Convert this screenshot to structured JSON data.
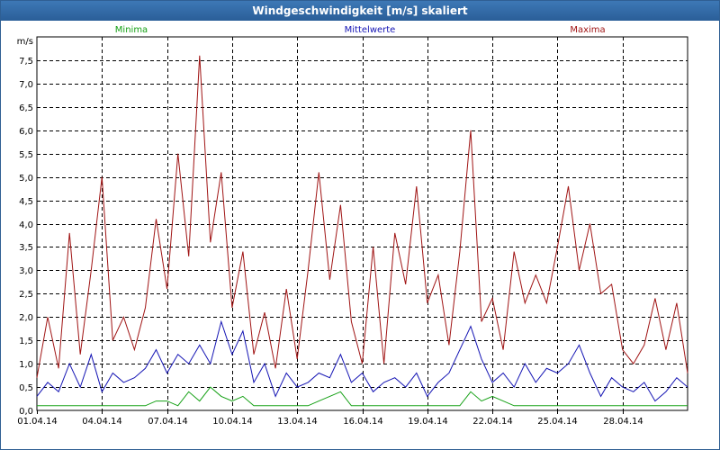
{
  "window": {
    "title": "Windgeschwindigkeit [m/s] skaliert"
  },
  "colors": {
    "min": "#14a014",
    "mean": "#1414b4",
    "max": "#a01414",
    "grid": "#000000"
  },
  "chart_data": {
    "type": "line",
    "title": "Windgeschwindigkeit [m/s] skaliert",
    "ylabel": "m/s",
    "xlabel": "",
    "xlim": [
      "2014-04-01",
      "2014-05-01"
    ],
    "ylim": [
      0,
      8
    ],
    "grid": true,
    "legend_position": "top",
    "y_ticks": [
      "0,0",
      "0,5",
      "1,0",
      "1,5",
      "2,0",
      "2,5",
      "3,0",
      "3,5",
      "4,0",
      "4,5",
      "5,0",
      "5,5",
      "6,0",
      "6,5",
      "7,0",
      "7,5"
    ],
    "y_tick_values": [
      0,
      0.5,
      1,
      1.5,
      2,
      2.5,
      3,
      3.5,
      4,
      4.5,
      5,
      5.5,
      6,
      6.5,
      7,
      7.5
    ],
    "x_ticks": [
      "01.04.14",
      "04.04.14",
      "07.04.14",
      "10.04.14",
      "13.04.14",
      "16.04.14",
      "19.04.14",
      "22.04.14",
      "25.04.14",
      "28.04.14"
    ],
    "x_tick_days": [
      0,
      3,
      6,
      9,
      12,
      15,
      18,
      21,
      24,
      27
    ],
    "series": [
      {
        "name": "Minima",
        "color": "#14a014",
        "x": [
          "2014-04-01",
          "2014-04-01T12:00",
          "2014-04-02",
          "2014-04-02T12:00",
          "2014-04-03",
          "2014-04-03T12:00",
          "2014-04-04",
          "2014-04-04T12:00",
          "2014-04-05",
          "2014-04-05T12:00",
          "2014-04-06",
          "2014-04-06T12:00",
          "2014-04-07",
          "2014-04-07T12:00",
          "2014-04-08",
          "2014-04-08T12:00",
          "2014-04-09",
          "2014-04-09T12:00",
          "2014-04-10",
          "2014-04-10T12:00",
          "2014-04-11",
          "2014-04-11T12:00",
          "2014-04-12",
          "2014-04-12T12:00",
          "2014-04-13",
          "2014-04-13T12:00",
          "2014-04-14",
          "2014-04-14T12:00",
          "2014-04-15",
          "2014-04-15T12:00",
          "2014-04-16",
          "2014-04-16T12:00",
          "2014-04-17",
          "2014-04-17T12:00",
          "2014-04-18",
          "2014-04-18T12:00",
          "2014-04-19",
          "2014-04-19T12:00",
          "2014-04-20",
          "2014-04-20T12:00",
          "2014-04-21",
          "2014-04-21T12:00",
          "2014-04-22",
          "2014-04-22T12:00",
          "2014-04-23",
          "2014-04-23T12:00",
          "2014-04-24",
          "2014-04-24T12:00",
          "2014-04-25",
          "2014-04-25T12:00",
          "2014-04-26",
          "2014-04-26T12:00",
          "2014-04-27",
          "2014-04-27T12:00",
          "2014-04-28",
          "2014-04-28T12:00",
          "2014-04-29",
          "2014-04-29T12:00",
          "2014-04-30",
          "2014-04-30T12:00",
          "2014-05-01"
        ],
        "y": [
          0.1,
          0.1,
          0.1,
          0.1,
          0.1,
          0.1,
          0.1,
          0.1,
          0.1,
          0.1,
          0.1,
          0.2,
          0.2,
          0.1,
          0.4,
          0.2,
          0.5,
          0.3,
          0.2,
          0.3,
          0.1,
          0.1,
          0.1,
          0.1,
          0.1,
          0.1,
          0.2,
          0.3,
          0.4,
          0.1,
          0.1,
          0.1,
          0.1,
          0.1,
          0.1,
          0.1,
          0.1,
          0.1,
          0.1,
          0.1,
          0.4,
          0.2,
          0.3,
          0.2,
          0.1,
          0.1,
          0.1,
          0.1,
          0.1,
          0.1,
          0.1,
          0.1,
          0.1,
          0.1,
          0.1,
          0.1,
          0.1,
          0.1,
          0.1,
          0.1,
          0.1
        ]
      },
      {
        "name": "Mittelwerte",
        "color": "#1414b4",
        "x": [
          "2014-04-01",
          "2014-04-01T12:00",
          "2014-04-02",
          "2014-04-02T12:00",
          "2014-04-03",
          "2014-04-03T12:00",
          "2014-04-04",
          "2014-04-04T12:00",
          "2014-04-05",
          "2014-04-05T12:00",
          "2014-04-06",
          "2014-04-06T12:00",
          "2014-04-07",
          "2014-04-07T12:00",
          "2014-04-08",
          "2014-04-08T12:00",
          "2014-04-09",
          "2014-04-09T12:00",
          "2014-04-10",
          "2014-04-10T12:00",
          "2014-04-11",
          "2014-04-11T12:00",
          "2014-04-12",
          "2014-04-12T12:00",
          "2014-04-13",
          "2014-04-13T12:00",
          "2014-04-14",
          "2014-04-14T12:00",
          "2014-04-15",
          "2014-04-15T12:00",
          "2014-04-16",
          "2014-04-16T12:00",
          "2014-04-17",
          "2014-04-17T12:00",
          "2014-04-18",
          "2014-04-18T12:00",
          "2014-04-19",
          "2014-04-19T12:00",
          "2014-04-20",
          "2014-04-20T12:00",
          "2014-04-21",
          "2014-04-21T12:00",
          "2014-04-22",
          "2014-04-22T12:00",
          "2014-04-23",
          "2014-04-23T12:00",
          "2014-04-24",
          "2014-04-24T12:00",
          "2014-04-25",
          "2014-04-25T12:00",
          "2014-04-26",
          "2014-04-26T12:00",
          "2014-04-27",
          "2014-04-27T12:00",
          "2014-04-28",
          "2014-04-28T12:00",
          "2014-04-29",
          "2014-04-29T12:00",
          "2014-04-30",
          "2014-04-30T12:00",
          "2014-05-01"
        ],
        "y": [
          0.3,
          0.6,
          0.4,
          1.0,
          0.5,
          1.2,
          0.4,
          0.8,
          0.6,
          0.7,
          0.9,
          1.3,
          0.8,
          1.2,
          1.0,
          1.4,
          1.0,
          1.9,
          1.2,
          1.7,
          0.6,
          1.0,
          0.3,
          0.8,
          0.5,
          0.6,
          0.8,
          0.7,
          1.2,
          0.6,
          0.8,
          0.4,
          0.6,
          0.7,
          0.5,
          0.8,
          0.3,
          0.6,
          0.8,
          1.3,
          1.8,
          1.1,
          0.6,
          0.8,
          0.5,
          1.0,
          0.6,
          0.9,
          0.8,
          1.0,
          1.4,
          0.8,
          0.3,
          0.7,
          0.5,
          0.4,
          0.6,
          0.2,
          0.4,
          0.7,
          0.5
        ]
      },
      {
        "name": "Maxima",
        "color": "#a01414",
        "x": [
          "2014-04-01",
          "2014-04-01T12:00",
          "2014-04-02",
          "2014-04-02T12:00",
          "2014-04-03",
          "2014-04-03T12:00",
          "2014-04-04",
          "2014-04-04T12:00",
          "2014-04-05",
          "2014-04-05T12:00",
          "2014-04-06",
          "2014-04-06T12:00",
          "2014-04-07",
          "2014-04-07T12:00",
          "2014-04-08",
          "2014-04-08T12:00",
          "2014-04-09",
          "2014-04-09T12:00",
          "2014-04-10",
          "2014-04-10T12:00",
          "2014-04-11",
          "2014-04-11T12:00",
          "2014-04-12",
          "2014-04-12T12:00",
          "2014-04-13",
          "2014-04-13T12:00",
          "2014-04-14",
          "2014-04-14T12:00",
          "2014-04-15",
          "2014-04-15T12:00",
          "2014-04-16",
          "2014-04-16T12:00",
          "2014-04-17",
          "2014-04-17T12:00",
          "2014-04-18",
          "2014-04-18T12:00",
          "2014-04-19",
          "2014-04-19T12:00",
          "2014-04-20",
          "2014-04-20T12:00",
          "2014-04-21",
          "2014-04-21T12:00",
          "2014-04-22",
          "2014-04-22T12:00",
          "2014-04-23",
          "2014-04-23T12:00",
          "2014-04-24",
          "2014-04-24T12:00",
          "2014-04-25",
          "2014-04-25T12:00",
          "2014-04-26",
          "2014-04-26T12:00",
          "2014-04-27",
          "2014-04-27T12:00",
          "2014-04-28",
          "2014-04-28T12:00",
          "2014-04-29",
          "2014-04-29T12:00",
          "2014-04-30",
          "2014-04-30T12:00",
          "2014-05-01"
        ],
        "y": [
          0.7,
          2.0,
          0.9,
          3.8,
          1.2,
          3.0,
          5.0,
          1.5,
          2.0,
          1.3,
          2.2,
          4.1,
          2.6,
          5.5,
          3.3,
          7.6,
          3.6,
          5.1,
          2.2,
          3.4,
          1.2,
          2.1,
          0.9,
          2.6,
          1.1,
          3.0,
          5.1,
          2.8,
          4.4,
          1.9,
          1.0,
          3.5,
          1.0,
          3.8,
          2.7,
          4.8,
          2.3,
          2.9,
          1.4,
          3.4,
          6.0,
          1.9,
          2.4,
          1.3,
          3.4,
          2.3,
          2.9,
          2.3,
          3.5,
          4.8,
          3.0,
          4.0,
          2.5,
          2.7,
          1.3,
          1.0,
          1.4,
          2.4,
          1.3,
          2.3,
          0.8
        ]
      }
    ]
  }
}
